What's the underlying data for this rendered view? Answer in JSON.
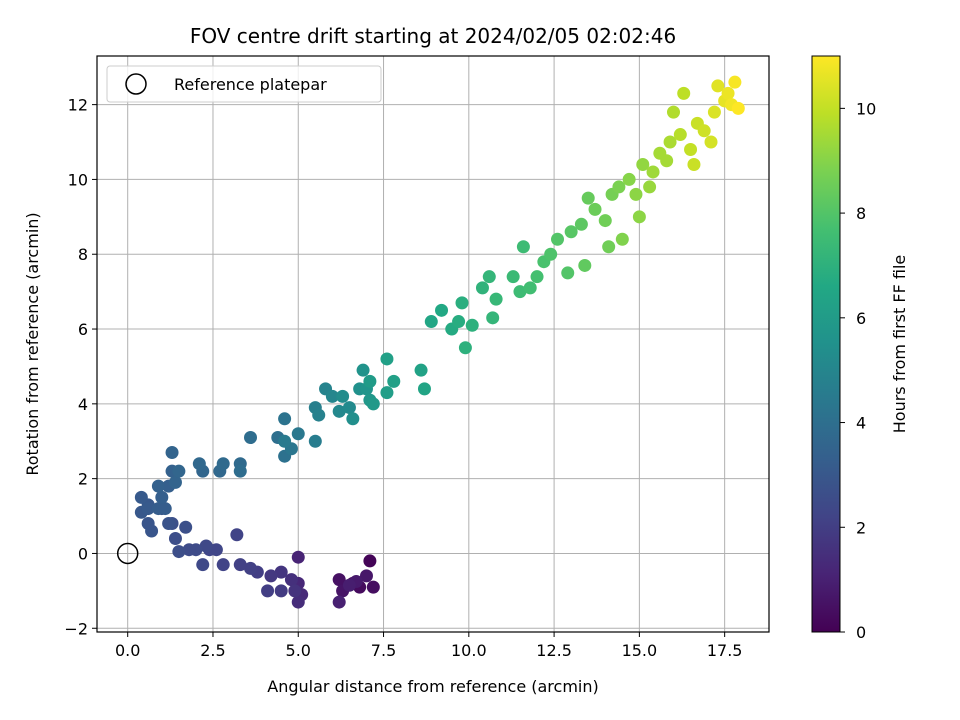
{
  "chart_data": {
    "type": "scatter",
    "title": "FOV centre drift starting at 2024/02/05 02:02:46",
    "xlabel": "Angular distance from reference (arcmin)",
    "ylabel": "Rotation from reference (arcmin)",
    "xlim": [
      -0.9,
      18.8
    ],
    "ylim": [
      -2.1,
      13.3
    ],
    "xticks": [
      0.0,
      2.5,
      5.0,
      7.5,
      10.0,
      12.5,
      15.0,
      17.5
    ],
    "xtick_labels": [
      "0.0",
      "2.5",
      "5.0",
      "7.5",
      "10.0",
      "12.5",
      "15.0",
      "17.5"
    ],
    "yticks": [
      -2,
      0,
      2,
      4,
      6,
      8,
      10,
      12
    ],
    "ytick_labels": [
      "−2",
      "0",
      "2",
      "4",
      "6",
      "8",
      "10",
      "12"
    ],
    "grid": true,
    "colormap": "viridis",
    "colorbar": {
      "label": "Hours from first FF file",
      "range": [
        0,
        11
      ],
      "ticks": [
        0,
        2,
        4,
        6,
        8,
        10
      ],
      "tick_labels": [
        "0",
        "2",
        "4",
        "6",
        "8",
        "10"
      ]
    },
    "legend": {
      "position": "top-left",
      "entries": [
        "Reference platepar"
      ]
    },
    "reference_point": {
      "x": 0.0,
      "y": 0.0
    },
    "series": [
      {
        "points": [
          [
            7.1,
            -0.2,
            0.1
          ],
          [
            6.6,
            -0.8,
            0.2
          ],
          [
            6.8,
            -0.9,
            0.3
          ],
          [
            7.2,
            -0.9,
            0.4
          ],
          [
            6.2,
            -0.7,
            0.5
          ],
          [
            6.3,
            -1.0,
            0.6
          ],
          [
            7.0,
            -0.6,
            0.7
          ],
          [
            6.7,
            -0.75,
            0.8
          ],
          [
            6.5,
            -0.85,
            0.9
          ],
          [
            6.2,
            -1.3,
            1.0
          ],
          [
            5.0,
            -0.1,
            1.1
          ],
          [
            5.0,
            -0.8,
            1.2
          ],
          [
            5.1,
            -1.1,
            1.3
          ],
          [
            5.0,
            -1.3,
            1.4
          ],
          [
            4.8,
            -0.7,
            1.5
          ],
          [
            4.9,
            -1.0,
            1.6
          ],
          [
            4.5,
            -0.5,
            1.7
          ],
          [
            4.2,
            -0.6,
            1.8
          ],
          [
            4.5,
            -1.0,
            1.9
          ],
          [
            4.1,
            -1.0,
            2.0
          ],
          [
            3.8,
            -0.5,
            2.0
          ],
          [
            3.6,
            -0.4,
            2.1
          ],
          [
            3.3,
            -0.3,
            2.1
          ],
          [
            3.2,
            0.5,
            2.2
          ],
          [
            2.8,
            -0.3,
            2.2
          ],
          [
            2.6,
            0.1,
            2.3
          ],
          [
            2.4,
            0.1,
            2.3
          ],
          [
            2.3,
            0.2,
            2.4
          ],
          [
            2.2,
            -0.3,
            2.4
          ],
          [
            2.0,
            0.1,
            2.5
          ],
          [
            1.8,
            0.1,
            2.5
          ],
          [
            1.5,
            0.05,
            2.6
          ],
          [
            1.4,
            0.4,
            2.6
          ],
          [
            1.3,
            0.8,
            2.7
          ],
          [
            1.7,
            0.7,
            2.7
          ],
          [
            1.2,
            0.8,
            2.8
          ],
          [
            1.0,
            1.2,
            2.8
          ],
          [
            0.7,
            0.6,
            2.9
          ],
          [
            0.6,
            0.8,
            2.9
          ],
          [
            0.6,
            1.3,
            3.0
          ],
          [
            0.4,
            1.1,
            3.0
          ],
          [
            0.4,
            1.5,
            3.1
          ],
          [
            0.6,
            1.2,
            3.1
          ],
          [
            0.9,
            1.2,
            3.2
          ],
          [
            1.1,
            1.2,
            3.2
          ],
          [
            1.0,
            1.5,
            3.3
          ],
          [
            1.2,
            1.8,
            3.3
          ],
          [
            0.9,
            1.8,
            3.4
          ],
          [
            1.3,
            2.2,
            3.4
          ],
          [
            1.4,
            1.9,
            3.5
          ],
          [
            1.3,
            2.7,
            3.5
          ],
          [
            1.5,
            2.2,
            3.6
          ],
          [
            2.2,
            2.2,
            3.6
          ],
          [
            2.1,
            2.4,
            3.7
          ],
          [
            2.7,
            2.2,
            3.7
          ],
          [
            2.8,
            2.4,
            3.8
          ],
          [
            3.3,
            2.4,
            3.8
          ],
          [
            3.3,
            2.2,
            3.9
          ],
          [
            3.6,
            3.1,
            3.9
          ],
          [
            4.4,
            3.1,
            4.0
          ],
          [
            4.6,
            2.6,
            4.1
          ],
          [
            4.6,
            3.6,
            4.2
          ],
          [
            4.8,
            2.8,
            4.3
          ],
          [
            5.0,
            3.2,
            4.4
          ],
          [
            4.6,
            3.0,
            4.5
          ],
          [
            5.5,
            3.0,
            4.6
          ],
          [
            5.5,
            3.9,
            4.7
          ],
          [
            5.6,
            3.7,
            4.8
          ],
          [
            5.8,
            4.4,
            4.9
          ],
          [
            6.0,
            4.2,
            5.0
          ],
          [
            6.2,
            3.8,
            5.1
          ],
          [
            6.5,
            3.9,
            5.2
          ],
          [
            6.3,
            4.2,
            5.3
          ],
          [
            6.6,
            3.6,
            5.4
          ],
          [
            6.8,
            4.4,
            5.5
          ],
          [
            6.9,
            4.9,
            5.6
          ],
          [
            7.0,
            4.4,
            5.7
          ],
          [
            7.1,
            4.1,
            5.8
          ],
          [
            7.2,
            4.0,
            5.9
          ],
          [
            7.1,
            4.6,
            6.0
          ],
          [
            7.6,
            4.3,
            6.1
          ],
          [
            7.8,
            4.6,
            6.2
          ],
          [
            7.6,
            5.2,
            6.2
          ],
          [
            8.6,
            4.9,
            6.3
          ],
          [
            8.7,
            4.4,
            6.4
          ],
          [
            8.9,
            6.2,
            6.5
          ],
          [
            9.2,
            6.5,
            6.6
          ],
          [
            9.5,
            6.0,
            6.7
          ],
          [
            9.7,
            6.2,
            6.8
          ],
          [
            9.8,
            6.7,
            6.9
          ],
          [
            9.9,
            5.5,
            7.0
          ],
          [
            10.1,
            6.1,
            7.0
          ],
          [
            10.4,
            7.1,
            7.1
          ],
          [
            10.6,
            7.4,
            7.2
          ],
          [
            10.7,
            6.3,
            7.2
          ],
          [
            10.8,
            6.8,
            7.3
          ],
          [
            11.3,
            7.4,
            7.4
          ],
          [
            11.5,
            7.0,
            7.5
          ],
          [
            11.6,
            8.2,
            7.5
          ],
          [
            11.8,
            7.1,
            7.6
          ],
          [
            12.0,
            7.4,
            7.7
          ],
          [
            12.2,
            7.8,
            7.8
          ],
          [
            12.4,
            8.0,
            7.9
          ],
          [
            12.6,
            8.4,
            8.0
          ],
          [
            12.9,
            7.5,
            8.0
          ],
          [
            13.0,
            8.6,
            8.1
          ],
          [
            13.3,
            8.8,
            8.2
          ],
          [
            13.4,
            7.7,
            8.3
          ],
          [
            13.5,
            9.5,
            8.4
          ],
          [
            13.7,
            9.2,
            8.5
          ],
          [
            14.0,
            8.9,
            8.6
          ],
          [
            14.1,
            8.2,
            8.6
          ],
          [
            14.2,
            9.6,
            8.7
          ],
          [
            14.4,
            9.8,
            8.8
          ],
          [
            14.5,
            8.4,
            8.9
          ],
          [
            14.7,
            10.0,
            9.0
          ],
          [
            14.9,
            9.6,
            9.1
          ],
          [
            15.0,
            9.0,
            9.1
          ],
          [
            15.1,
            10.4,
            9.2
          ],
          [
            15.3,
            9.8,
            9.3
          ],
          [
            15.4,
            10.2,
            9.4
          ],
          [
            15.6,
            10.7,
            9.5
          ],
          [
            15.8,
            10.5,
            9.5
          ],
          [
            15.9,
            11.0,
            9.6
          ],
          [
            16.0,
            11.8,
            9.7
          ],
          [
            16.2,
            11.2,
            9.8
          ],
          [
            16.3,
            12.3,
            9.9
          ],
          [
            16.5,
            10.8,
            10.0
          ],
          [
            16.6,
            10.4,
            10.1
          ],
          [
            16.7,
            11.5,
            10.1
          ],
          [
            16.9,
            11.3,
            10.2
          ],
          [
            17.1,
            11.0,
            10.3
          ],
          [
            17.2,
            11.8,
            10.4
          ],
          [
            17.3,
            12.5,
            10.5
          ],
          [
            17.5,
            12.1,
            10.6
          ],
          [
            17.6,
            12.3,
            10.7
          ],
          [
            17.7,
            12.0,
            10.8
          ],
          [
            17.8,
            12.6,
            10.9
          ],
          [
            17.9,
            11.9,
            11.0
          ]
        ]
      }
    ]
  }
}
